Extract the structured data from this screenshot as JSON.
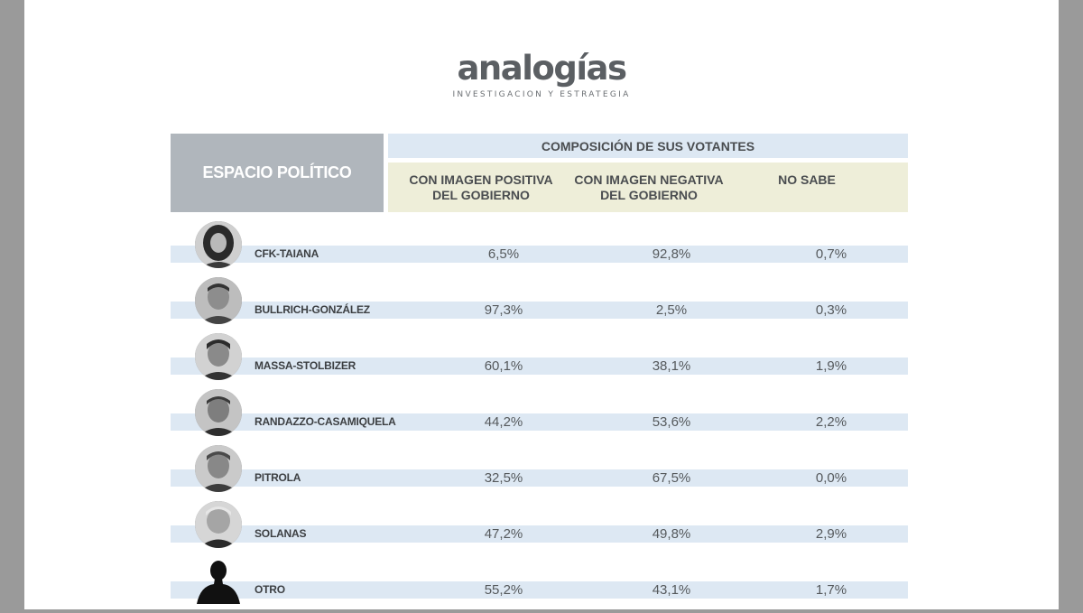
{
  "logo": {
    "name": "analogías",
    "tagline": "INVESTIGACION Y ESTRATEGIA"
  },
  "table": {
    "header_left": "ESPACIO POLÍTICO",
    "header_group": "COMPOSICIÓN DE SUS VOTANTES",
    "columns": [
      {
        "l1": "CON IMAGEN POSITIVA",
        "l2": "DEL GOBIERNO"
      },
      {
        "l1": "CON IMAGEN NEGATIVA",
        "l2": "DEL GOBIERNO"
      },
      {
        "l1": "NO SABE",
        "l2": ""
      }
    ],
    "rows": [
      {
        "name": "CFK-TAIANA",
        "pos": "6,5%",
        "neg": "92,8%",
        "ns": "0,7%"
      },
      {
        "name": "BULLRICH-GONZÁLEZ",
        "pos": "97,3%",
        "neg": "2,5%",
        "ns": "0,3%"
      },
      {
        "name": "MASSA-STOLBIZER",
        "pos": "60,1%",
        "neg": "38,1%",
        "ns": "1,9%"
      },
      {
        "name": "RANDAZZO-CASAMIQUELA",
        "pos": "44,2%",
        "neg": "53,6%",
        "ns": "2,2%"
      },
      {
        "name": "PITROLA",
        "pos": "32,5%",
        "neg": "67,5%",
        "ns": "0,0%"
      },
      {
        "name": "SOLANAS",
        "pos": "47,2%",
        "neg": "49,8%",
        "ns": "2,9%"
      },
      {
        "name": "OTRO",
        "pos": "55,2%",
        "neg": "43,1%",
        "ns": "1,7%"
      }
    ]
  }
}
